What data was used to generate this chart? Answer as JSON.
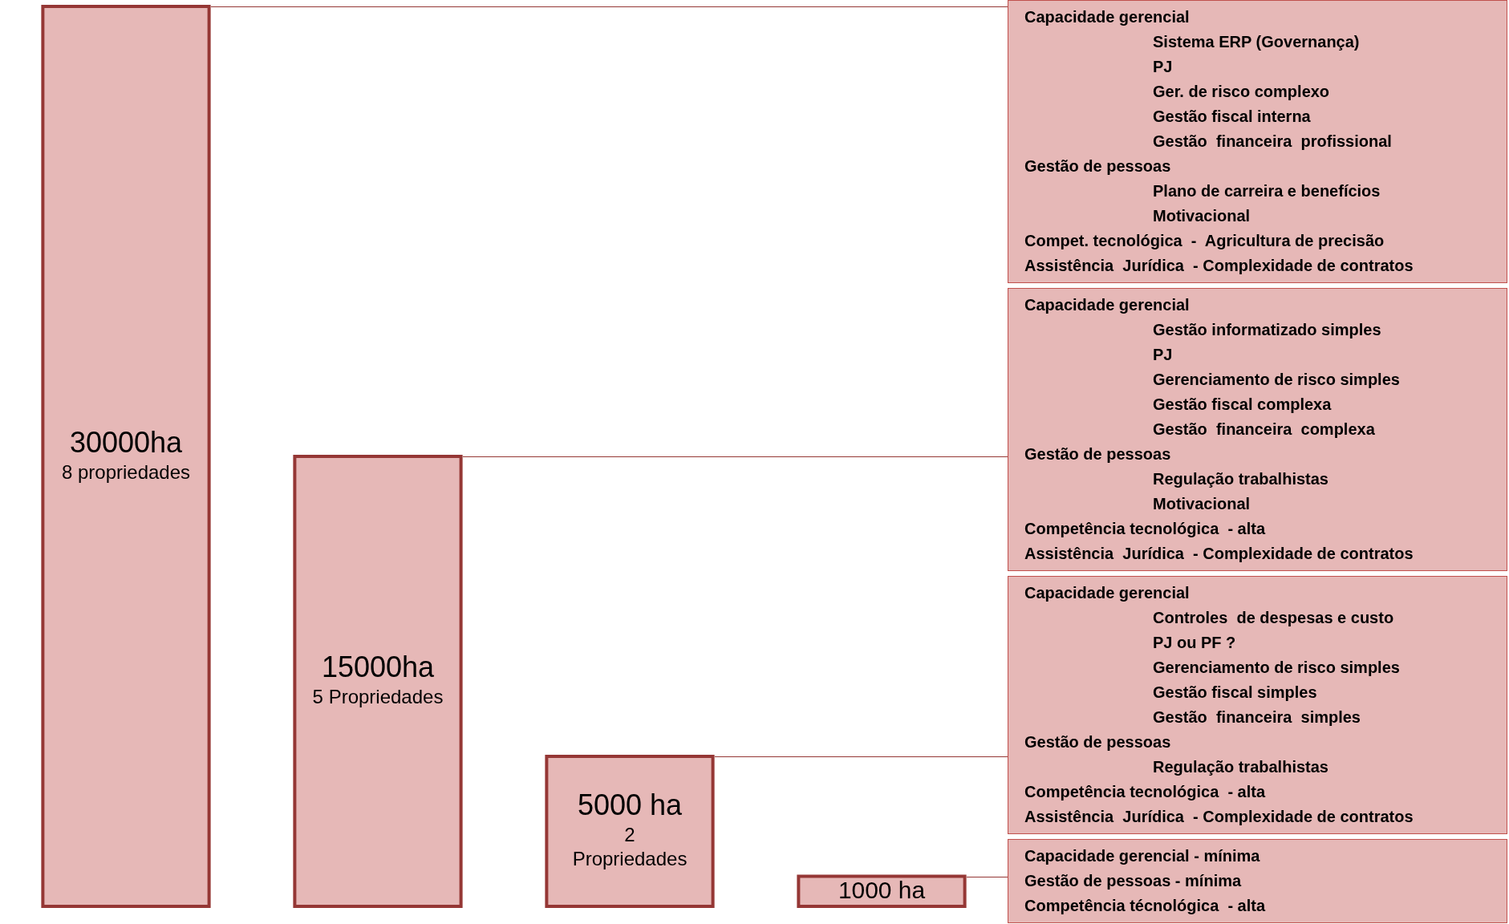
{
  "chart_data": {
    "type": "bar",
    "categories": [
      null,
      null,
      null,
      null
    ],
    "values": [
      30000,
      15000,
      5000,
      1000
    ],
    "colors": [
      "#e6b8b7",
      "#e6b8b7",
      "#e6b8b7",
      "#e6b8b7"
    ],
    "value_labels": [
      "30000ha\n8 propriedades",
      "15000ha\n5 Propriedades",
      "5000 ha\n2\nPropriedades",
      "1000 ha"
    ],
    "annotations": [
      "Capacidade gerencial\n        Sistema ERP (Governança)\n        PJ\n        Ger. de risco complexo\n        Gestão fiscal interna\n        Gestão  financeira  profissional\nGestão de pessoas\n        Plano de carreira e benefícios\n        Motivacional\nCompet. tecnológica  -  Agricultura de precisão\nAssistência  Jurídica  - Complexidade de contratos",
      "Capacidade gerencial\n        Gestão informatizado simples\n        PJ\n        Gerenciamento de risco simples\n        Gestão fiscal complexa\n        Gestão  financeira  complexa\nGestão de pessoas\n        Regulação trabalhistas\n        Motivacional\nCompetência tecnológica  - alta\nAssistência  Jurídica  - Complexidade de contratos",
      "Capacidade gerencial\n        Controles  de despesas e custo\n        PJ ou PF ?\n        Gerenciamento de risco simples\n        Gestão fiscal simples\n        Gestão  financeira  simples\nGestão de pessoas\n        Regulação trabalhistas\nCompetência tecnológica  - alta\nAssistência  Jurídica  - Complexidade de contratos",
      "Capacidade gerencial - mínima\nGestão de pessoas - mínima\nCompetência técnológica  - alta"
    ],
    "legend": false
  }
}
